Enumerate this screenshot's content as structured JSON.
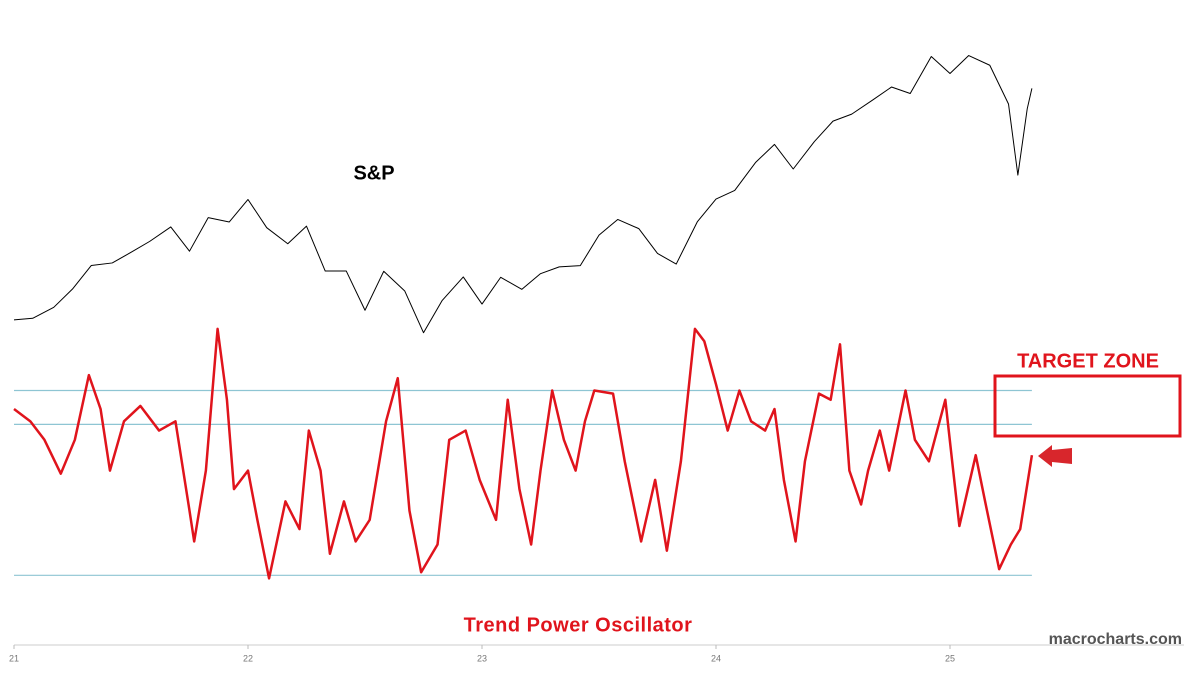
{
  "watermark": "macrocharts.com",
  "chart_data": [
    {
      "type": "line",
      "label": "S&P",
      "color": "#000000",
      "xlim": [
        2021,
        2026
      ],
      "ylim": [
        3300,
        6400
      ],
      "x": [
        2021.0,
        2021.08,
        2021.17,
        2021.25,
        2021.33,
        2021.42,
        2021.5,
        2021.58,
        2021.67,
        2021.75,
        2021.83,
        2021.92,
        2022.0,
        2022.08,
        2022.17,
        2022.25,
        2022.33,
        2022.42,
        2022.5,
        2022.58,
        2022.67,
        2022.75,
        2022.83,
        2022.92,
        2023.0,
        2023.08,
        2023.17,
        2023.25,
        2023.33,
        2023.42,
        2023.5,
        2023.58,
        2023.67,
        2023.75,
        2023.83,
        2023.92,
        2024.0,
        2024.08,
        2024.17,
        2024.25,
        2024.33,
        2024.42,
        2024.5,
        2024.58,
        2024.67,
        2024.75,
        2024.83,
        2024.92,
        2025.0,
        2025.08,
        2025.17,
        2025.25,
        2025.29,
        2025.33,
        2025.35
      ],
      "values": [
        3700,
        3714,
        3811,
        3973,
        4181,
        4204,
        4298,
        4395,
        4523,
        4308,
        4605,
        4567,
        4766,
        4516,
        4374,
        4530,
        4132,
        4132,
        3785,
        4130,
        3955,
        3586,
        3872,
        4080,
        3840,
        4077,
        3970,
        4109,
        4169,
        4180,
        4450,
        4589,
        4508,
        4288,
        4194,
        4568,
        4770,
        4846,
        5096,
        5254,
        5036,
        5278,
        5460,
        5522,
        5648,
        5762,
        5705,
        6032,
        5882,
        6041,
        5955,
        5612,
        4982,
        5569,
        5750
      ]
    },
    {
      "type": "line",
      "title": "Trend Power Oscillator",
      "annotation": "TARGET ZONE",
      "color": "#e0141c",
      "level_color": "#8ec5d3",
      "xlim": [
        2021,
        2026
      ],
      "ylim": [
        0,
        105
      ],
      "xticks": [
        {
          "value": 2021,
          "label": "21"
        },
        {
          "value": 2022,
          "label": "22"
        },
        {
          "value": 2023,
          "label": "23"
        },
        {
          "value": 2024,
          "label": "24"
        },
        {
          "value": 2025,
          "label": "25"
        }
      ],
      "levels": [
        21,
        70,
        81
      ],
      "x": [
        2021.0,
        2021.07,
        2021.13,
        2021.2,
        2021.26,
        2021.32,
        2021.37,
        2021.41,
        2021.47,
        2021.54,
        2021.62,
        2021.69,
        2021.75,
        2021.77,
        2021.82,
        2021.87,
        2021.91,
        2021.94,
        2022.0,
        2022.04,
        2022.09,
        2022.16,
        2022.22,
        2022.26,
        2022.31,
        2022.35,
        2022.41,
        2022.46,
        2022.52,
        2022.59,
        2022.64,
        2022.69,
        2022.74,
        2022.81,
        2022.86,
        2022.93,
        2022.99,
        2023.06,
        2023.11,
        2023.16,
        2023.21,
        2023.25,
        2023.3,
        2023.35,
        2023.4,
        2023.44,
        2023.48,
        2023.56,
        2023.61,
        2023.68,
        2023.74,
        2023.79,
        2023.85,
        2023.91,
        2023.95,
        2024.0,
        2024.05,
        2024.1,
        2024.15,
        2024.21,
        2024.25,
        2024.29,
        2024.34,
        2024.38,
        2024.44,
        2024.49,
        2024.53,
        2024.57,
        2024.62,
        2024.65,
        2024.7,
        2024.74,
        2024.81,
        2024.85,
        2024.91,
        2024.98,
        2025.04,
        2025.11,
        2025.15,
        2025.21,
        2025.26,
        2025.3,
        2025.35
      ],
      "values": [
        75,
        71,
        65,
        54,
        65,
        86,
        75,
        55,
        71,
        76,
        68,
        71,
        42,
        32,
        55,
        101,
        78,
        49,
        55,
        39,
        20,
        45,
        36,
        68,
        55,
        28,
        45,
        32,
        39,
        71,
        85,
        42,
        22,
        31,
        65,
        68,
        52,
        39,
        78,
        49,
        31,
        55,
        81,
        65,
        55,
        71,
        81,
        80,
        58,
        32,
        52,
        29,
        58,
        101,
        97,
        83,
        68,
        81,
        71,
        68,
        75,
        52,
        32,
        58,
        80,
        78,
        96,
        55,
        44,
        55,
        68,
        55,
        81,
        65,
        58,
        78,
        37,
        60,
        45,
        23,
        31,
        36,
        60
      ]
    }
  ]
}
